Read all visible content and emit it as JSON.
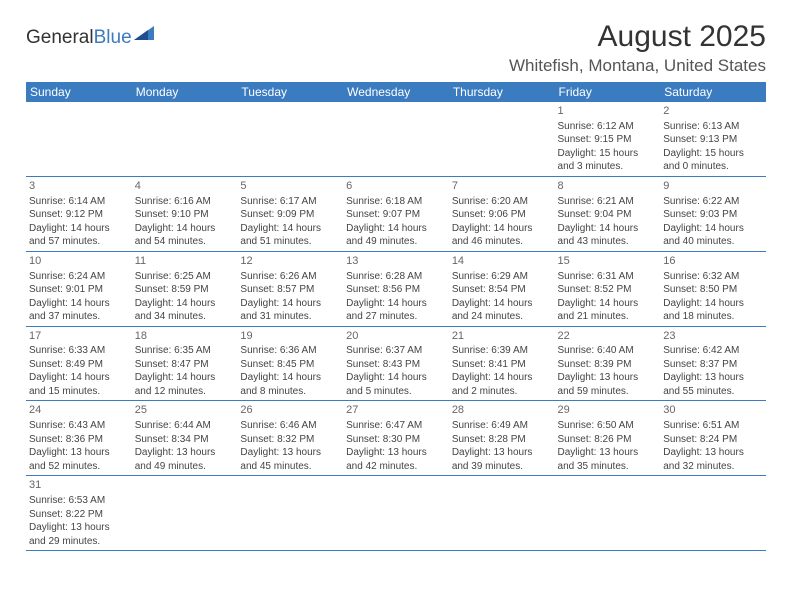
{
  "brand": {
    "name1": "General",
    "name2": "Blue",
    "accent": "#3b7bbf"
  },
  "title": "August 2025",
  "location": "Whitefish, Montana, United States",
  "dayHeaders": [
    "Sunday",
    "Monday",
    "Tuesday",
    "Wednesday",
    "Thursday",
    "Friday",
    "Saturday"
  ],
  "colors": {
    "headerBg": "#3b7bbf",
    "headerText": "#ffffff",
    "cellBorder": "#3b7bbf",
    "bodyText": "#444444",
    "titleText": "#333333",
    "locationText": "#555555"
  },
  "weeks": [
    [
      null,
      null,
      null,
      null,
      null,
      {
        "n": "1",
        "sr": "Sunrise: 6:12 AM",
        "ss": "Sunset: 9:15 PM",
        "d1": "Daylight: 15 hours",
        "d2": "and 3 minutes."
      },
      {
        "n": "2",
        "sr": "Sunrise: 6:13 AM",
        "ss": "Sunset: 9:13 PM",
        "d1": "Daylight: 15 hours",
        "d2": "and 0 minutes."
      }
    ],
    [
      {
        "n": "3",
        "sr": "Sunrise: 6:14 AM",
        "ss": "Sunset: 9:12 PM",
        "d1": "Daylight: 14 hours",
        "d2": "and 57 minutes."
      },
      {
        "n": "4",
        "sr": "Sunrise: 6:16 AM",
        "ss": "Sunset: 9:10 PM",
        "d1": "Daylight: 14 hours",
        "d2": "and 54 minutes."
      },
      {
        "n": "5",
        "sr": "Sunrise: 6:17 AM",
        "ss": "Sunset: 9:09 PM",
        "d1": "Daylight: 14 hours",
        "d2": "and 51 minutes."
      },
      {
        "n": "6",
        "sr": "Sunrise: 6:18 AM",
        "ss": "Sunset: 9:07 PM",
        "d1": "Daylight: 14 hours",
        "d2": "and 49 minutes."
      },
      {
        "n": "7",
        "sr": "Sunrise: 6:20 AM",
        "ss": "Sunset: 9:06 PM",
        "d1": "Daylight: 14 hours",
        "d2": "and 46 minutes."
      },
      {
        "n": "8",
        "sr": "Sunrise: 6:21 AM",
        "ss": "Sunset: 9:04 PM",
        "d1": "Daylight: 14 hours",
        "d2": "and 43 minutes."
      },
      {
        "n": "9",
        "sr": "Sunrise: 6:22 AM",
        "ss": "Sunset: 9:03 PM",
        "d1": "Daylight: 14 hours",
        "d2": "and 40 minutes."
      }
    ],
    [
      {
        "n": "10",
        "sr": "Sunrise: 6:24 AM",
        "ss": "Sunset: 9:01 PM",
        "d1": "Daylight: 14 hours",
        "d2": "and 37 minutes."
      },
      {
        "n": "11",
        "sr": "Sunrise: 6:25 AM",
        "ss": "Sunset: 8:59 PM",
        "d1": "Daylight: 14 hours",
        "d2": "and 34 minutes."
      },
      {
        "n": "12",
        "sr": "Sunrise: 6:26 AM",
        "ss": "Sunset: 8:57 PM",
        "d1": "Daylight: 14 hours",
        "d2": "and 31 minutes."
      },
      {
        "n": "13",
        "sr": "Sunrise: 6:28 AM",
        "ss": "Sunset: 8:56 PM",
        "d1": "Daylight: 14 hours",
        "d2": "and 27 minutes."
      },
      {
        "n": "14",
        "sr": "Sunrise: 6:29 AM",
        "ss": "Sunset: 8:54 PM",
        "d1": "Daylight: 14 hours",
        "d2": "and 24 minutes."
      },
      {
        "n": "15",
        "sr": "Sunrise: 6:31 AM",
        "ss": "Sunset: 8:52 PM",
        "d1": "Daylight: 14 hours",
        "d2": "and 21 minutes."
      },
      {
        "n": "16",
        "sr": "Sunrise: 6:32 AM",
        "ss": "Sunset: 8:50 PM",
        "d1": "Daylight: 14 hours",
        "d2": "and 18 minutes."
      }
    ],
    [
      {
        "n": "17",
        "sr": "Sunrise: 6:33 AM",
        "ss": "Sunset: 8:49 PM",
        "d1": "Daylight: 14 hours",
        "d2": "and 15 minutes."
      },
      {
        "n": "18",
        "sr": "Sunrise: 6:35 AM",
        "ss": "Sunset: 8:47 PM",
        "d1": "Daylight: 14 hours",
        "d2": "and 12 minutes."
      },
      {
        "n": "19",
        "sr": "Sunrise: 6:36 AM",
        "ss": "Sunset: 8:45 PM",
        "d1": "Daylight: 14 hours",
        "d2": "and 8 minutes."
      },
      {
        "n": "20",
        "sr": "Sunrise: 6:37 AM",
        "ss": "Sunset: 8:43 PM",
        "d1": "Daylight: 14 hours",
        "d2": "and 5 minutes."
      },
      {
        "n": "21",
        "sr": "Sunrise: 6:39 AM",
        "ss": "Sunset: 8:41 PM",
        "d1": "Daylight: 14 hours",
        "d2": "and 2 minutes."
      },
      {
        "n": "22",
        "sr": "Sunrise: 6:40 AM",
        "ss": "Sunset: 8:39 PM",
        "d1": "Daylight: 13 hours",
        "d2": "and 59 minutes."
      },
      {
        "n": "23",
        "sr": "Sunrise: 6:42 AM",
        "ss": "Sunset: 8:37 PM",
        "d1": "Daylight: 13 hours",
        "d2": "and 55 minutes."
      }
    ],
    [
      {
        "n": "24",
        "sr": "Sunrise: 6:43 AM",
        "ss": "Sunset: 8:36 PM",
        "d1": "Daylight: 13 hours",
        "d2": "and 52 minutes."
      },
      {
        "n": "25",
        "sr": "Sunrise: 6:44 AM",
        "ss": "Sunset: 8:34 PM",
        "d1": "Daylight: 13 hours",
        "d2": "and 49 minutes."
      },
      {
        "n": "26",
        "sr": "Sunrise: 6:46 AM",
        "ss": "Sunset: 8:32 PM",
        "d1": "Daylight: 13 hours",
        "d2": "and 45 minutes."
      },
      {
        "n": "27",
        "sr": "Sunrise: 6:47 AM",
        "ss": "Sunset: 8:30 PM",
        "d1": "Daylight: 13 hours",
        "d2": "and 42 minutes."
      },
      {
        "n": "28",
        "sr": "Sunrise: 6:49 AM",
        "ss": "Sunset: 8:28 PM",
        "d1": "Daylight: 13 hours",
        "d2": "and 39 minutes."
      },
      {
        "n": "29",
        "sr": "Sunrise: 6:50 AM",
        "ss": "Sunset: 8:26 PM",
        "d1": "Daylight: 13 hours",
        "d2": "and 35 minutes."
      },
      {
        "n": "30",
        "sr": "Sunrise: 6:51 AM",
        "ss": "Sunset: 8:24 PM",
        "d1": "Daylight: 13 hours",
        "d2": "and 32 minutes."
      }
    ],
    [
      {
        "n": "31",
        "sr": "Sunrise: 6:53 AM",
        "ss": "Sunset: 8:22 PM",
        "d1": "Daylight: 13 hours",
        "d2": "and 29 minutes."
      },
      null,
      null,
      null,
      null,
      null,
      null
    ]
  ]
}
